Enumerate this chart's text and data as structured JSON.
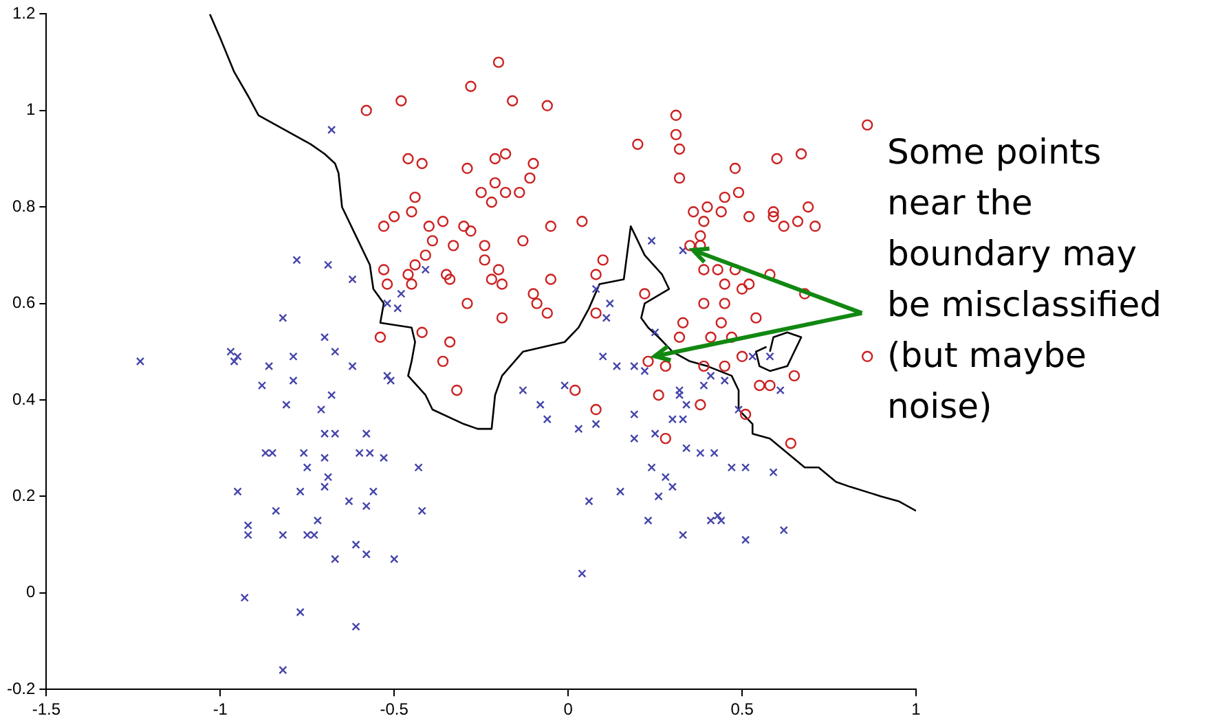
{
  "chart_data": {
    "type": "scatter",
    "xlim": [
      -1.5,
      1
    ],
    "ylim": [
      -0.2,
      1.2
    ],
    "xticks": [
      -1.5,
      -1,
      -0.5,
      0,
      0.5,
      1
    ],
    "yticks": [
      -0.2,
      0,
      0.2,
      0.4,
      0.6,
      0.8,
      1,
      1.2
    ],
    "grid": false,
    "legend": false,
    "annotations": [
      {
        "text": "Some points near the boundary may be misclassified (but maybe noise)",
        "x": 0.36,
        "y": 0.71
      }
    ],
    "series": [
      {
        "color": "#cc2222",
        "marker": "circle",
        "x": [
          -0.2,
          -0.28,
          -0.48,
          -0.58,
          -0.16,
          -0.06,
          -0.46,
          -0.42,
          -0.29,
          -0.21,
          -0.18,
          -0.1,
          -0.11,
          -0.21,
          -0.25,
          -0.22,
          -0.18,
          -0.14,
          -0.44,
          -0.45,
          -0.5,
          -0.53,
          -0.4,
          -0.36,
          -0.3,
          -0.28,
          -0.05,
          0.04,
          -0.13,
          -0.39,
          -0.33,
          -0.24,
          -0.24,
          -0.41,
          -0.44,
          -0.53,
          -0.46,
          -0.45,
          -0.52,
          -0.35,
          -0.34,
          -0.22,
          -0.2,
          -0.19,
          -0.05,
          -0.1,
          -0.09,
          -0.06,
          -0.29,
          -0.19,
          0.1,
          0.08,
          0.08,
          0.2,
          -0.54,
          -0.42,
          -0.34,
          0.31,
          0.31,
          0.32,
          0.86,
          0.48,
          0.6,
          0.67,
          0.32,
          0.49,
          0.45,
          0.36,
          0.4,
          0.39,
          0.44,
          0.52,
          0.59,
          0.59,
          0.62,
          0.66,
          0.69,
          0.71,
          0.38,
          0.35,
          0.38,
          0.39,
          0.43,
          0.48,
          0.45,
          0.5,
          0.52,
          0.58,
          0.68,
          0.39,
          0.45,
          0.22,
          0.33,
          0.44,
          0.54,
          0.32,
          0.41,
          0.47,
          0.23,
          0.28,
          0.26,
          0.39,
          0.45,
          0.5,
          0.38,
          0.28,
          0.51,
          0.55,
          0.58,
          0.65,
          0.64,
          0.86,
          -0.36,
          -0.32,
          0.02,
          0.08
        ],
        "values": [
          1.1,
          1.05,
          1.02,
          1.0,
          1.02,
          1.01,
          0.9,
          0.89,
          0.88,
          0.9,
          0.91,
          0.89,
          0.86,
          0.85,
          0.83,
          0.81,
          0.83,
          0.83,
          0.82,
          0.79,
          0.78,
          0.76,
          0.76,
          0.77,
          0.76,
          0.75,
          0.76,
          0.77,
          0.73,
          0.73,
          0.72,
          0.72,
          0.69,
          0.7,
          0.68,
          0.67,
          0.66,
          0.64,
          0.64,
          0.66,
          0.65,
          0.65,
          0.67,
          0.64,
          0.65,
          0.62,
          0.6,
          0.58,
          0.6,
          0.57,
          0.69,
          0.66,
          0.58,
          0.93,
          0.53,
          0.54,
          0.52,
          0.99,
          0.95,
          0.92,
          0.97,
          0.88,
          0.9,
          0.91,
          0.86,
          0.83,
          0.82,
          0.79,
          0.8,
          0.77,
          0.79,
          0.78,
          0.79,
          0.78,
          0.76,
          0.77,
          0.8,
          0.76,
          0.74,
          0.72,
          0.72,
          0.67,
          0.67,
          0.67,
          0.64,
          0.63,
          0.64,
          0.66,
          0.62,
          0.6,
          0.6,
          0.62,
          0.56,
          0.56,
          0.57,
          0.53,
          0.53,
          0.53,
          0.48,
          0.47,
          0.41,
          0.47,
          0.47,
          0.49,
          0.39,
          0.32,
          0.37,
          0.43,
          0.43,
          0.45,
          0.31,
          0.49,
          0.48,
          0.42,
          0.42,
          0.38
        ]
      },
      {
        "color": "#4444aa",
        "marker": "cross",
        "x": [
          -0.62,
          -0.41,
          -0.48,
          -0.52,
          -0.49,
          0.08,
          0.12,
          0.11,
          0.24,
          0.33,
          0.25,
          0.19,
          0.22,
          0.32,
          0.32,
          0.34,
          0.39,
          0.41,
          0.45,
          0.53,
          0.58,
          0.61,
          0.49,
          0.19,
          0.3,
          0.33,
          0.25,
          0.19,
          0.34,
          0.38,
          0.42,
          0.24,
          0.28,
          0.3,
          0.26,
          0.47,
          0.51,
          0.59,
          0.23,
          0.41,
          0.43,
          0.44,
          0.33,
          0.51,
          0.62,
          -0.62,
          -0.52,
          -0.51,
          -0.13,
          -0.08,
          -0.06,
          -0.01,
          0.03,
          0.08,
          0.1,
          0.14,
          -0.58,
          -0.6,
          -0.57,
          -0.53,
          -0.43,
          -0.56,
          -0.63,
          -0.58,
          -0.42,
          -0.61,
          -0.58,
          -0.5,
          0.06,
          0.15,
          0.04,
          -0.61,
          -1.23,
          -0.97,
          -0.96,
          -0.95,
          -0.86,
          -0.79,
          -0.67,
          -0.88,
          -0.79,
          -0.68,
          -0.81,
          -0.71,
          -0.7,
          -0.67,
          -0.87,
          -0.85,
          -0.76,
          -0.75,
          -0.7,
          -0.69,
          -0.7,
          -0.95,
          -0.77,
          -0.84,
          -0.72,
          -0.92,
          -0.92,
          -0.82,
          -0.75,
          -0.73,
          -0.67,
          -0.93,
          -0.77,
          -0.82,
          -0.68,
          -0.78,
          -0.69,
          -0.82,
          -0.7
        ],
        "values": [
          0.65,
          0.67,
          0.62,
          0.6,
          0.59,
          0.63,
          0.6,
          0.57,
          0.73,
          0.71,
          0.54,
          0.47,
          0.46,
          0.42,
          0.41,
          0.39,
          0.43,
          0.45,
          0.44,
          0.49,
          0.49,
          0.42,
          0.38,
          0.37,
          0.36,
          0.36,
          0.33,
          0.32,
          0.3,
          0.29,
          0.29,
          0.26,
          0.24,
          0.22,
          0.2,
          0.26,
          0.26,
          0.25,
          0.15,
          0.15,
          0.16,
          0.15,
          0.12,
          0.11,
          0.13,
          0.47,
          0.45,
          0.44,
          0.42,
          0.39,
          0.36,
          0.43,
          0.34,
          0.35,
          0.49,
          0.47,
          0.33,
          0.29,
          0.29,
          0.28,
          0.26,
          0.21,
          0.19,
          0.18,
          0.17,
          0.1,
          0.08,
          0.07,
          0.19,
          0.21,
          0.04,
          -0.07,
          0.48,
          0.5,
          0.48,
          0.49,
          0.47,
          0.49,
          0.5,
          0.43,
          0.44,
          0.41,
          0.39,
          0.38,
          0.33,
          0.33,
          0.29,
          0.29,
          0.29,
          0.26,
          0.28,
          0.24,
          0.22,
          0.21,
          0.21,
          0.17,
          0.15,
          0.14,
          0.12,
          0.12,
          0.12,
          0.12,
          0.07,
          -0.01,
          -0.04,
          -0.16,
          0.96,
          0.69,
          0.68,
          0.57,
          0.53
        ]
      },
      {
        "type": "line",
        "color": "#000000",
        "marker": "none",
        "x": [
          -1.03,
          -1.0,
          -0.96,
          -0.92,
          -0.89,
          -0.84,
          -0.79,
          -0.74,
          -0.7,
          -0.67,
          -0.66,
          -0.65,
          -0.61,
          -0.57,
          -0.56,
          -0.53,
          -0.54,
          -0.45,
          -0.44,
          -0.45,
          -0.46,
          -0.41,
          -0.39,
          -0.3,
          -0.26,
          -0.22,
          -0.21,
          -0.19,
          -0.13,
          -0.01,
          0.03,
          0.06,
          0.09,
          0.16,
          0.18,
          0.22,
          0.27,
          0.29,
          0.22,
          0.21,
          0.23,
          0.26,
          0.3,
          0.35,
          0.4,
          0.47,
          0.49,
          0.49,
          0.53,
          0.53,
          0.58,
          0.63,
          0.68,
          0.72,
          0.77,
          0.81,
          0.9,
          0.95,
          1.0
        ],
        "values": [
          1.2,
          1.15,
          1.08,
          1.03,
          0.99,
          0.97,
          0.95,
          0.93,
          0.91,
          0.89,
          0.87,
          0.8,
          0.74,
          0.68,
          0.63,
          0.6,
          0.56,
          0.55,
          0.52,
          0.48,
          0.45,
          0.41,
          0.38,
          0.35,
          0.34,
          0.34,
          0.41,
          0.45,
          0.5,
          0.52,
          0.55,
          0.59,
          0.64,
          0.65,
          0.76,
          0.7,
          0.66,
          0.63,
          0.6,
          0.57,
          0.55,
          0.53,
          0.5,
          0.48,
          0.47,
          0.45,
          0.42,
          0.38,
          0.35,
          0.33,
          0.32,
          0.29,
          0.26,
          0.26,
          0.23,
          0.22,
          0.2,
          0.19,
          0.17
        ]
      },
      {
        "type": "line",
        "color": "#000000",
        "marker": "none",
        "x": [
          0.58,
          0.59,
          0.63,
          0.67,
          0.65,
          0.63,
          0.58,
          0.55,
          0.54,
          0.57
        ],
        "values": [
          0.5,
          0.53,
          0.54,
          0.53,
          0.5,
          0.47,
          0.46,
          0.47,
          0.5,
          0.51
        ]
      }
    ]
  }
}
